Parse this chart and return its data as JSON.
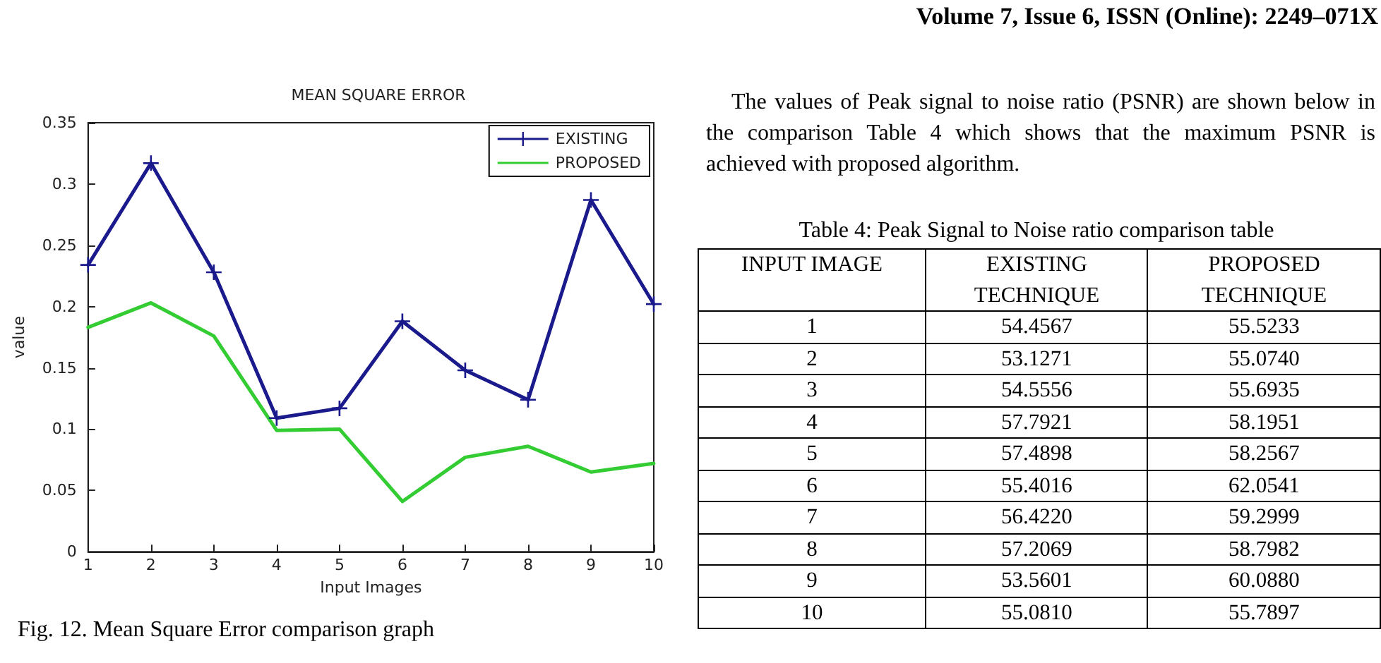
{
  "chart_data": [
    {
      "type": "line",
      "title": "MEAN SQUARE ERROR",
      "xlabel": "Input Images",
      "ylabel": "value",
      "x": [
        1,
        2,
        3,
        4,
        5,
        6,
        7,
        8,
        9,
        10
      ],
      "series": [
        {
          "name": "EXISTING",
          "color": "#1a1a8c",
          "marker": "cross",
          "values": [
            0.234,
            0.317,
            0.228,
            0.109,
            0.117,
            0.188,
            0.148,
            0.124,
            0.287,
            0.202
          ]
        },
        {
          "name": "PROPOSED",
          "color": "#33cc33",
          "marker": "none",
          "values": [
            0.183,
            0.203,
            0.176,
            0.099,
            0.1,
            0.041,
            0.077,
            0.086,
            0.065,
            0.072
          ]
        }
      ],
      "xlim": [
        1,
        10
      ],
      "xticks": [
        1,
        2,
        3,
        4,
        5,
        6,
        7,
        8,
        9,
        10
      ],
      "ylim": [
        0,
        0.35
      ],
      "yticks": [
        0,
        0.05,
        0.1,
        0.15,
        0.2,
        0.25,
        0.3,
        0.35
      ],
      "grid": false,
      "legend": "top right",
      "line_style": "solid",
      "annotations": [
        "Fig. 12. Mean Square Error comparison graph"
      ]
    },
    {
      "type": "heatmap",
      "title": "Table 4: Peak Signal to Noise ratio comparison table",
      "ylabel": "INPUT IMAGE",
      "categories": [
        "EXISTING TECHNIQUE",
        "PROPOSED TECHNIQUE"
      ],
      "y_categories": [
        "1",
        "2",
        "3",
        "4",
        "5",
        "6",
        "7",
        "8",
        "9",
        "10"
      ],
      "cells": [
        [
          54.4567,
          55.5233
        ],
        [
          53.1271,
          55.074
        ],
        [
          54.5556,
          55.6935
        ],
        [
          57.7921,
          58.1951
        ],
        [
          57.4898,
          58.2567
        ],
        [
          55.4016,
          62.0541
        ],
        [
          56.422,
          59.2999
        ],
        [
          57.2069,
          58.7982
        ],
        [
          53.5601,
          60.088
        ],
        [
          55.081,
          55.7897
        ]
      ],
      "cell_labels": [
        [
          "54.4567",
          "55.5233"
        ],
        [
          "53.1271",
          "55.0740"
        ],
        [
          "54.5556",
          "55.6935"
        ],
        [
          "57.7921",
          "58.1951"
        ],
        [
          "57.4898",
          "58.2567"
        ],
        [
          "55.4016",
          "62.0541"
        ],
        [
          "56.4220",
          "59.2999"
        ],
        [
          "57.2069",
          "58.7982"
        ],
        [
          "53.5601",
          "60.0880"
        ],
        [
          "55.0810",
          "55.7897"
        ]
      ],
      "annotations": [
        "Volume 7, Issue 6, ISSN (Online): 2249–071X",
        "The values of Peak signal to noise ratio (PSNR) are shown below in the comparison Table 4 which shows that the maximum PSNR is achieved with proposed algorithm."
      ]
    }
  ]
}
